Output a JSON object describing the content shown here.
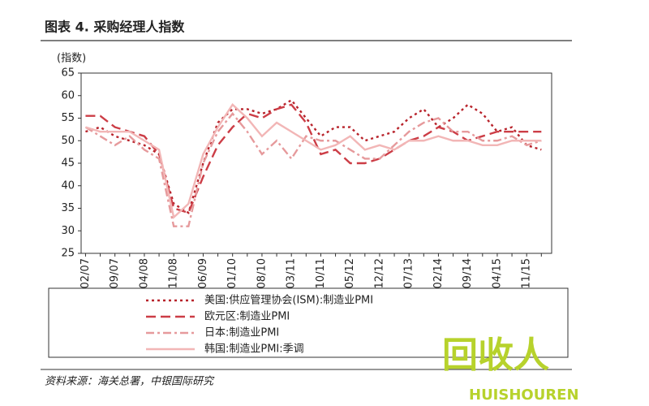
{
  "chart_data": {
    "type": "line",
    "title": "图表 4. 采购经理人指数",
    "y_label": "(指数)",
    "source": "资料来源：海关总署，中银国际研究",
    "watermark": [
      "回收人",
      "HUISHOUREN"
    ],
    "categories": [
      "02/07",
      null,
      "09/07",
      null,
      "04/08",
      null,
      "11/08",
      null,
      "06/09",
      null,
      "01/10",
      null,
      "08/10",
      null,
      "03/11",
      null,
      "10/11",
      null,
      "05/12",
      null,
      "12/12",
      null,
      "07/13",
      null,
      "02/14",
      null,
      "09/14",
      null,
      "04/15",
      null,
      "11/15",
      null
    ],
    "ylim": [
      25,
      65
    ],
    "yticks": [
      25,
      30,
      35,
      40,
      45,
      50,
      55,
      60,
      65
    ],
    "series": [
      {
        "name": "美国:供应管理协会(ISM):制造业PMI",
        "color": "#b8232b",
        "dash": "dotted",
        "values": [
          52,
          53,
          51,
          50,
          49,
          47,
          36,
          34,
          45,
          54,
          57,
          57,
          56,
          57,
          59,
          55,
          51,
          53,
          53,
          50,
          51,
          52,
          55,
          57,
          53,
          55,
          58,
          56,
          52,
          53,
          49,
          48
        ]
      },
      {
        "name": "欧元区:制造业PMI",
        "color": "#cc3d46",
        "dash": "long",
        "values": [
          55.5,
          55.5,
          53,
          52,
          51,
          47,
          35,
          34,
          42,
          49,
          53,
          56,
          55,
          57,
          58,
          54,
          47,
          48,
          45,
          45,
          46,
          48,
          50,
          51,
          53,
          52,
          50,
          51,
          52,
          52,
          52,
          52
        ]
      },
      {
        "name": "日本:制造业PMI",
        "color": "#e69a9c",
        "dash": "dashdot",
        "values": [
          53,
          51,
          49,
          51,
          48,
          46,
          31,
          31,
          45,
          52,
          56,
          52,
          47,
          50,
          46,
          51,
          50,
          50,
          48,
          46,
          46,
          49,
          52,
          54,
          55,
          52,
          52,
          50,
          50,
          51,
          49,
          50
        ]
      },
      {
        "name": "韩国:制造业PMI:季调",
        "color": "#f2b6b6",
        "dash": "solid",
        "values": [
          53,
          52,
          52,
          52,
          50,
          48,
          33,
          36,
          47,
          53,
          58,
          55,
          51,
          54,
          52,
          50,
          48,
          49,
          51,
          48,
          49,
          48,
          50,
          50,
          51,
          50,
          50,
          49,
          49,
          50,
          50,
          50
        ]
      }
    ]
  }
}
